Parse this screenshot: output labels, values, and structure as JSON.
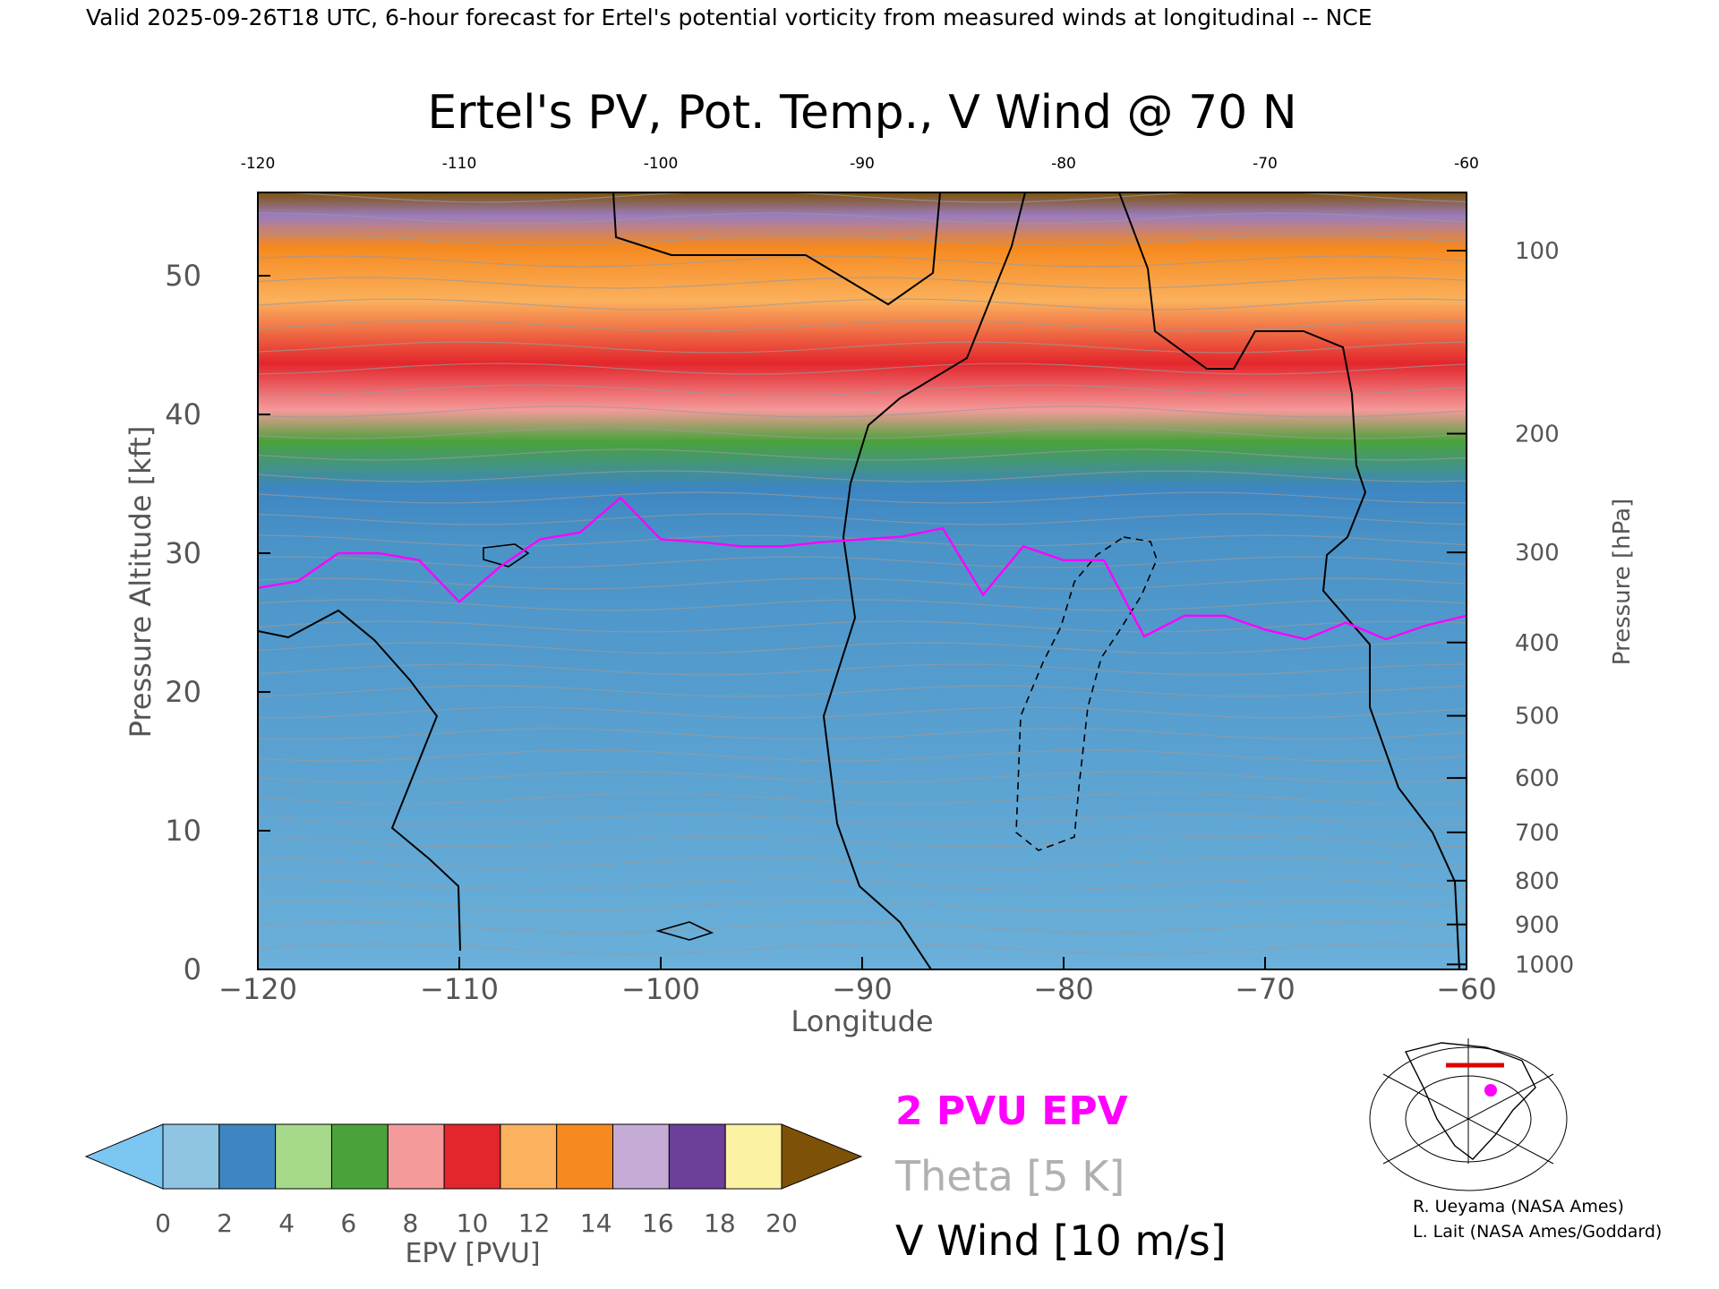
{
  "header": {
    "caption": "Valid 2025-09-26T18 UTC, 6-hour forecast for Ertel's potential vorticity from measured winds at longitudinal -- NCE"
  },
  "chart_data": {
    "type": "heatmap",
    "title": "Ertel's PV, Pot. Temp., V Wind @ 70 N",
    "xlabel": "Longitude",
    "ylabel_left": "Pressure Altitude [kft]",
    "ylabel_right": "Pressure [hPa]",
    "xlim": [
      -120,
      -60
    ],
    "ylim": [
      0,
      56
    ],
    "x_ticks": [
      -120,
      -110,
      -100,
      -90,
      -80,
      -70,
      -60
    ],
    "x_tick_labels": [
      "−120",
      "−110",
      "−100",
      "−90",
      "−80",
      "−70",
      "−60"
    ],
    "top_tick_labels": [
      "-120",
      "-110",
      "-100",
      "-90",
      "-80",
      "-70",
      "-60"
    ],
    "y_ticks": [
      0,
      10,
      20,
      30,
      40,
      50
    ],
    "y_tick_labels": [
      "0",
      "10",
      "20",
      "30",
      "40",
      "50"
    ],
    "pressure_ticks": [
      {
        "hpa": 100,
        "label": "100"
      },
      {
        "hpa": 200,
        "label": "200"
      },
      {
        "hpa": 300,
        "label": "300"
      },
      {
        "hpa": 400,
        "label": "400"
      },
      {
        "hpa": 500,
        "label": "500"
      },
      {
        "hpa": 600,
        "label": "600"
      },
      {
        "hpa": 700,
        "label": "700"
      },
      {
        "hpa": 800,
        "label": "800"
      },
      {
        "hpa": 900,
        "label": "900"
      },
      {
        "hpa": 1000,
        "label": "1000"
      }
    ],
    "pv_2pvu_line": {
      "lon": [
        -120,
        -118,
        -116,
        -114,
        -112,
        -110,
        -108,
        -106,
        -104,
        -102,
        -100,
        -98,
        -96,
        -94,
        -92,
        -90,
        -88,
        -86,
        -84,
        -82,
        -80,
        -78,
        -76,
        -74,
        -72,
        -70,
        -68,
        -66,
        -64,
        -62,
        -60
      ],
      "kft": [
        27.5,
        28,
        30,
        30,
        29.5,
        26.5,
        29,
        31,
        31.5,
        34,
        31,
        30.8,
        30.5,
        30.5,
        30.8,
        31,
        31.2,
        31.8,
        27,
        30.5,
        29.5,
        29.5,
        24,
        25.5,
        25.5,
        24.5,
        23.8,
        25,
        23.8,
        24.8,
        25.5
      ]
    },
    "colorbar": {
      "label": "EPV [PVU]",
      "tick_labels": [
        "0",
        "2",
        "4",
        "6",
        "8",
        "10",
        "12",
        "14",
        "16",
        "18",
        "20"
      ],
      "under_color": "#7cc6f2",
      "over_color": "#7d5208",
      "colors": [
        "#8fc4e2",
        "#3d86c2",
        "#a6d98a",
        "#4aa33a",
        "#f49a9a",
        "#e3262c",
        "#fbb15d",
        "#f6891f",
        "#c5acd6",
        "#6c3f98",
        "#fbf3a3"
      ]
    },
    "legend": {
      "pvu_label": "2 PVU EPV",
      "theta_label": "Theta [5 K]",
      "wind_label": "V Wind [10 m/s]",
      "pvu_color": "#ff00ff",
      "theta_color": "#b0b0b0",
      "wind_color": "#000000"
    }
  },
  "credits": {
    "line1": "R. Ueyama (NASA Ames)",
    "line2": "L. Lait (NASA Ames/Goddard)"
  }
}
